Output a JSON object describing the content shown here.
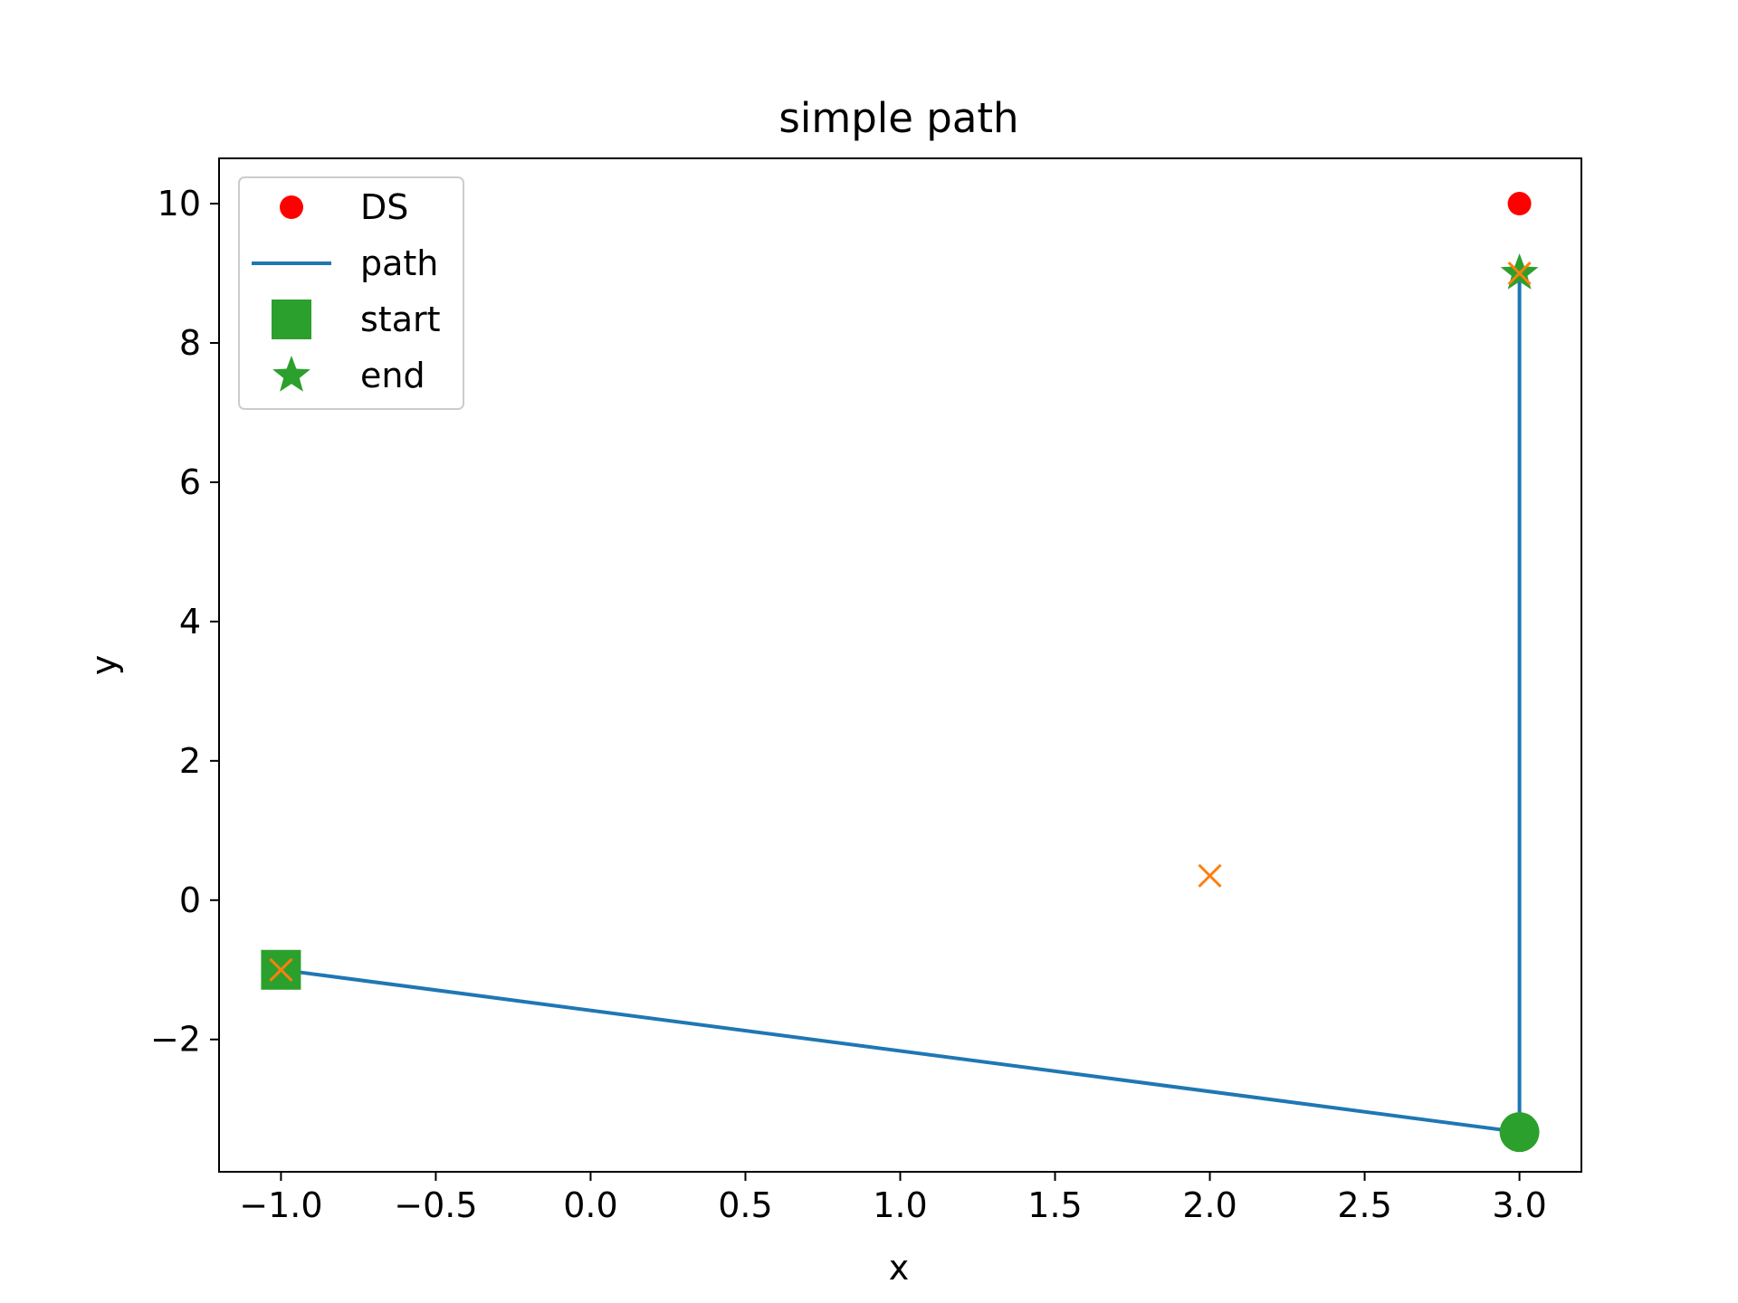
{
  "chart_data": {
    "type": "line",
    "title": "simple path",
    "xlabel": "x",
    "ylabel": "y",
    "xlim": [
      -1.2,
      3.2
    ],
    "ylim": [
      -3.9,
      10.65
    ],
    "xticks": [
      -1.0,
      -0.5,
      0.0,
      0.5,
      1.0,
      1.5,
      2.0,
      2.5,
      3.0
    ],
    "xtick_labels": [
      "−1.0",
      "−0.5",
      "0.0",
      "0.5",
      "1.0",
      "1.5",
      "2.0",
      "2.5",
      "3.0"
    ],
    "yticks": [
      -2,
      0,
      2,
      4,
      6,
      8,
      10
    ],
    "ytick_labels": [
      "−2",
      "0",
      "2",
      "4",
      "6",
      "8",
      "10"
    ],
    "grid": false,
    "legend_position": "upper-left",
    "series": [
      {
        "name": "DS",
        "kind": "scatter",
        "marker": "circle",
        "color": "#ff0000",
        "points": [
          {
            "x": 3.0,
            "y": 10.0
          }
        ]
      },
      {
        "name": "path",
        "kind": "line",
        "color": "#1f77b4",
        "points": [
          {
            "x": -1.0,
            "y": -1.0
          },
          {
            "x": 3.0,
            "y": -3.33
          },
          {
            "x": 3.0,
            "y": 9.0
          }
        ]
      },
      {
        "name": "start",
        "kind": "scatter",
        "marker": "square",
        "color": "#2ca02c",
        "points": [
          {
            "x": -1.0,
            "y": -1.0
          }
        ]
      },
      {
        "name": "end",
        "kind": "scatter",
        "marker": "star",
        "color": "#2ca02c",
        "points": [
          {
            "x": 3.0,
            "y": 9.0
          }
        ]
      }
    ],
    "extra_markers": [
      {
        "kind": "scatter",
        "marker": "circle-large",
        "color": "#2ca02c",
        "points": [
          {
            "x": 3.0,
            "y": -3.33
          }
        ]
      },
      {
        "kind": "scatter",
        "marker": "x",
        "color": "#ff7f0e",
        "points": [
          {
            "x": -1.0,
            "y": -1.0
          },
          {
            "x": 2.0,
            "y": 0.35
          },
          {
            "x": 3.0,
            "y": 9.0
          }
        ]
      }
    ]
  }
}
